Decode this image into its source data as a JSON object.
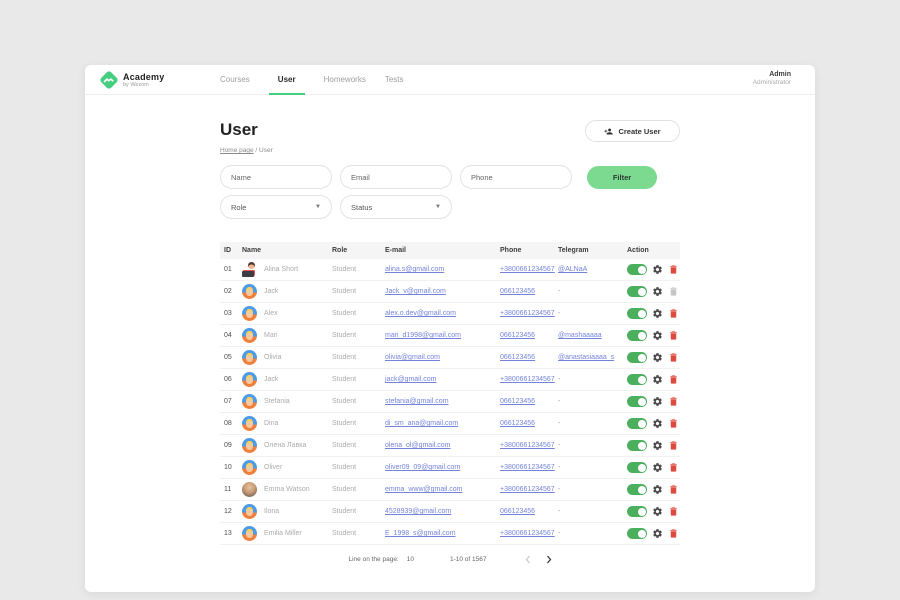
{
  "header": {
    "logo": {
      "title": "Academy",
      "subtitle": "by Wezom"
    },
    "nav": [
      {
        "label": "Courses",
        "active": false
      },
      {
        "label": "User",
        "active": true
      },
      {
        "label": "Homeworks",
        "active": false
      },
      {
        "label": "Tests",
        "active": false
      }
    ],
    "user": {
      "name": "Admin",
      "role": "Administrator"
    }
  },
  "page": {
    "title": "User",
    "breadcrumb": {
      "link": "Home page",
      "separator": "/",
      "current": "User"
    },
    "create_button": "Create User"
  },
  "filters": {
    "name_placeholder": "Name",
    "email_placeholder": "Email",
    "phone_placeholder": "Phone",
    "filter_button": "Filter",
    "role_select": "Role",
    "status_select": "Status"
  },
  "table": {
    "columns": [
      "ID",
      "Name",
      "Role",
      "E-mail",
      "Phone",
      "Telegram",
      "Action"
    ],
    "rows": [
      {
        "id": "01",
        "name": "Alina Short",
        "role": "Student",
        "email": "alina.s@gmail.com",
        "phone": "+3800661234567",
        "telegram": "@ALNaA",
        "avatar": "alina",
        "toggle_on": true,
        "delete_enabled": true
      },
      {
        "id": "02",
        "name": "Jack",
        "role": "Student",
        "email": "Jack_v@gmail.com",
        "phone": "066123456",
        "telegram": "-",
        "avatar": "cartoon",
        "toggle_on": true,
        "delete_enabled": false
      },
      {
        "id": "03",
        "name": "Alex",
        "role": "Student",
        "email": "alex.o.dev@gmail.com",
        "phone": "+3800661234567",
        "telegram": "-",
        "avatar": "cartoon",
        "toggle_on": true,
        "delete_enabled": true
      },
      {
        "id": "04",
        "name": "Mari",
        "role": "Student",
        "email": "mari_d1998@gmail.com",
        "phone": "066123456",
        "telegram": "@mashaaaaa",
        "avatar": "cartoon",
        "toggle_on": true,
        "delete_enabled": true
      },
      {
        "id": "05",
        "name": "Olivia",
        "role": "Student",
        "email": "olivia@gmail.com",
        "phone": "066123456",
        "telegram": "@anastasiaaaa_s",
        "avatar": "cartoon",
        "toggle_on": true,
        "delete_enabled": true
      },
      {
        "id": "06",
        "name": "Jack",
        "role": "Student",
        "email": "jack@gmail.com",
        "phone": "+3800661234567",
        "telegram": "-",
        "avatar": "cartoon",
        "toggle_on": true,
        "delete_enabled": true
      },
      {
        "id": "07",
        "name": "Stefania",
        "role": "Student",
        "email": "stefania@gmail.com",
        "phone": "066123456",
        "telegram": "-",
        "avatar": "cartoon",
        "toggle_on": true,
        "delete_enabled": true
      },
      {
        "id": "08",
        "name": "Dina",
        "role": "Student",
        "email": "di_sm_ana@gmail.com",
        "phone": "066123456",
        "telegram": "-",
        "avatar": "cartoon",
        "toggle_on": true,
        "delete_enabled": true
      },
      {
        "id": "09",
        "name": "Олена Лавка",
        "role": "Student",
        "email": "olena_ol@gmail.com",
        "phone": "+3800661234567",
        "telegram": "-",
        "avatar": "cartoon",
        "toggle_on": true,
        "delete_enabled": true
      },
      {
        "id": "10",
        "name": "Oliver",
        "role": "Student",
        "email": "oliver09_09@gmail.com",
        "phone": "+3800661234567",
        "telegram": "-",
        "avatar": "cartoon",
        "toggle_on": true,
        "delete_enabled": true
      },
      {
        "id": "11",
        "name": "Emma Watson",
        "role": "Student",
        "email": "emma_www@gmail.com",
        "phone": "+3800661234567",
        "telegram": "-",
        "avatar": "photo",
        "toggle_on": true,
        "delete_enabled": true
      },
      {
        "id": "12",
        "name": "Ilona",
        "role": "Student",
        "email": "4528939@gmail.com",
        "phone": "066123456",
        "telegram": "-",
        "avatar": "cartoon",
        "toggle_on": true,
        "delete_enabled": true
      },
      {
        "id": "13",
        "name": "Emilia Miller",
        "role": "Student",
        "email": "E_1998_s@gmail.com",
        "phone": "+3800661234567",
        "telegram": "-",
        "avatar": "cartoon",
        "toggle_on": true,
        "delete_enabled": true
      }
    ]
  },
  "pagination": {
    "lines_label": "Line on the page:",
    "lines_value": "10",
    "range": "1-10 of 1567"
  },
  "colors": {
    "brand_green": "#46CE80",
    "filter_button_green": "#7BDA90",
    "toggle_green": "#4CAF5E",
    "link_blue": "#7484DB",
    "delete_red": "#DD4B3E",
    "disabled_gray": "#C6C6C6",
    "background_gray": "#E9E9E9"
  },
  "icons": {
    "logo": "wave-diamond-icon",
    "create_user": "person-plus-icon",
    "select_caret": "chevron-down-icon",
    "toggle": "toggle-on-icon",
    "settings": "gear-icon",
    "delete": "trash-icon",
    "prev": "chevron-left-icon",
    "next": "chevron-right-icon"
  }
}
